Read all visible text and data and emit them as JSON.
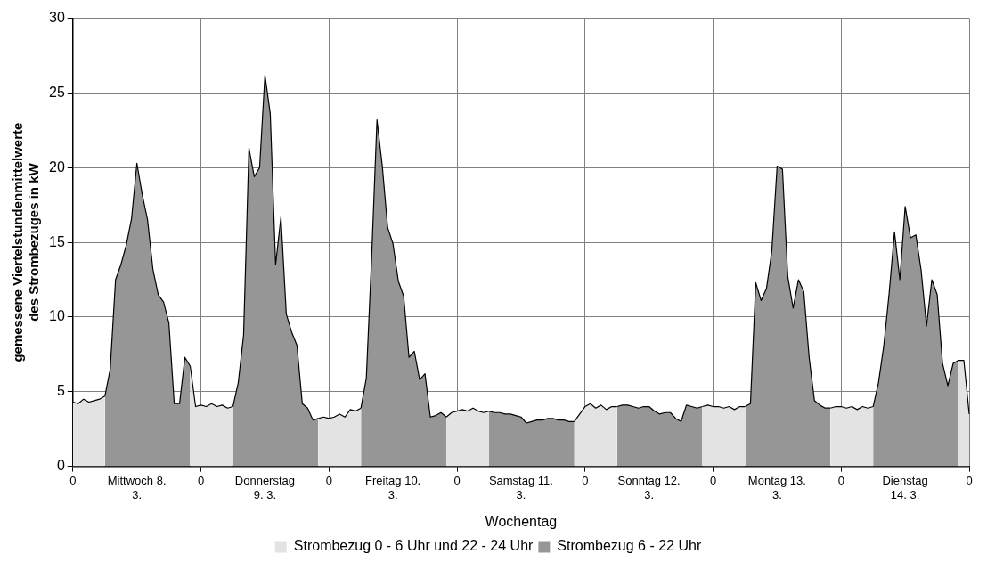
{
  "chart_data": {
    "type": "area",
    "xlabel": "Wochentag",
    "ylabel": "gemessene Viertelstundenmittelwerte des Strombezuges in kW",
    "categories": [
      "0",
      null,
      null,
      null,
      null,
      null,
      null,
      null,
      null,
      null,
      null,
      null,
      "Mittwoch 8. 3.",
      null,
      null,
      null,
      null,
      null,
      null,
      null,
      null,
      null,
      null,
      null,
      "0",
      null,
      null,
      null,
      null,
      null,
      null,
      null,
      null,
      null,
      null,
      null,
      "Donnerstag 9. 3.",
      null,
      null,
      null,
      null,
      null,
      null,
      null,
      null,
      null,
      null,
      null,
      "0",
      null,
      null,
      null,
      null,
      null,
      null,
      null,
      null,
      null,
      null,
      null,
      "Freitag 10. 3.",
      null,
      null,
      null,
      null,
      null,
      null,
      null,
      null,
      null,
      null,
      null,
      "0",
      null,
      null,
      null,
      null,
      null,
      null,
      null,
      null,
      null,
      null,
      null,
      "Samstag 11. 3.",
      null,
      null,
      null,
      null,
      null,
      null,
      null,
      null,
      null,
      null,
      null,
      "0",
      null,
      null,
      null,
      null,
      null,
      null,
      null,
      null,
      null,
      null,
      null,
      "Sonntag 12. 3.",
      null,
      null,
      null,
      null,
      null,
      null,
      null,
      null,
      null,
      null,
      null,
      "0",
      null,
      null,
      null,
      null,
      null,
      null,
      null,
      null,
      null,
      null,
      null,
      "Montag 13. 3.",
      null,
      null,
      null,
      null,
      null,
      null,
      null,
      null,
      null,
      null,
      null,
      "0",
      null,
      null,
      null,
      null,
      null,
      null,
      null,
      null,
      null,
      null,
      null,
      "Dienstag 14. 3.",
      null,
      null,
      null,
      null,
      null,
      null,
      null,
      null,
      null,
      null,
      null,
      "0"
    ],
    "ylim": [
      0,
      30
    ],
    "yticks": [
      0,
      5,
      10,
      15,
      20,
      25,
      30
    ],
    "grid": true,
    "legend": "bottom",
    "marker": "none",
    "series": [
      {
        "name": "Strombezug 0 - 6 Uhr und 22 - 24 Uhr",
        "color": "#e3e3e3",
        "values": [
          4.3,
          4.2,
          4.5,
          4.3,
          4.4,
          4.5,
          4.7,
          null,
          null,
          null,
          null,
          null,
          null,
          null,
          null,
          null,
          null,
          null,
          null,
          null,
          null,
          null,
          6.7,
          4.0,
          4.1,
          4.0,
          4.2,
          4.0,
          4.1,
          3.9,
          4.0,
          null,
          null,
          null,
          null,
          null,
          null,
          null,
          null,
          null,
          null,
          null,
          null,
          null,
          null,
          null,
          3.2,
          3.3,
          3.2,
          3.3,
          3.5,
          3.3,
          3.8,
          3.7,
          3.9,
          null,
          null,
          null,
          null,
          null,
          null,
          null,
          null,
          null,
          null,
          null,
          null,
          null,
          null,
          null,
          3.3,
          3.6,
          3.7,
          3.8,
          3.7,
          3.9,
          3.7,
          3.6,
          3.7,
          null,
          null,
          null,
          null,
          null,
          null,
          null,
          null,
          null,
          null,
          null,
          null,
          null,
          null,
          null,
          3.0,
          3.5,
          4.0,
          4.2,
          3.9,
          4.1,
          3.8,
          4.0,
          4.0,
          null,
          null,
          null,
          null,
          null,
          null,
          null,
          null,
          null,
          null,
          null,
          null,
          null,
          null,
          null,
          4.0,
          4.1,
          4.0,
          4.0,
          3.9,
          4.0,
          3.8,
          4.0,
          4.0,
          null,
          null,
          null,
          null,
          null,
          null,
          null,
          null,
          null,
          null,
          null,
          null,
          null,
          null,
          null,
          3.9,
          4.0,
          4.0,
          3.9,
          4.0,
          3.8,
          4.0,
          3.9,
          4.0,
          null,
          null,
          null,
          null,
          null,
          null,
          null,
          null,
          null,
          null,
          null,
          null,
          null,
          null,
          null,
          7.1,
          7.1,
          3.5
        ]
      },
      {
        "name": "Strombezug 6 - 22 Uhr",
        "color": "#969696",
        "values": [
          null,
          null,
          null,
          null,
          null,
          null,
          4.7,
          6.5,
          12.5,
          13.5,
          14.8,
          16.6,
          20.3,
          18.2,
          16.5,
          13.2,
          11.5,
          11.0,
          9.6,
          4.2,
          4.2,
          7.3,
          6.7,
          null,
          null,
          null,
          null,
          null,
          null,
          null,
          4.0,
          5.6,
          8.8,
          21.3,
          19.4,
          20.0,
          26.2,
          23.6,
          13.5,
          16.7,
          10.2,
          9.0,
          8.1,
          4.2,
          3.9,
          3.1,
          3.2,
          null,
          null,
          null,
          null,
          null,
          null,
          null,
          3.9,
          5.9,
          14.0,
          23.2,
          20.1,
          16.0,
          14.9,
          12.4,
          11.4,
          7.3,
          7.7,
          5.8,
          6.2,
          3.3,
          3.4,
          3.6,
          3.3,
          null,
          null,
          null,
          null,
          null,
          null,
          null,
          3.7,
          3.6,
          3.6,
          3.5,
          3.5,
          3.4,
          3.3,
          2.9,
          3.0,
          3.1,
          3.1,
          3.2,
          3.2,
          3.1,
          3.1,
          3.0,
          3.0,
          null,
          null,
          null,
          null,
          null,
          null,
          null,
          4.0,
          4.1,
          4.1,
          4.0,
          3.9,
          4.0,
          4.0,
          3.7,
          3.5,
          3.6,
          3.6,
          3.2,
          3.0,
          4.1,
          4.0,
          3.9,
          4.0,
          null,
          null,
          null,
          null,
          null,
          null,
          null,
          4.0,
          4.2,
          12.3,
          11.1,
          11.9,
          14.4,
          20.1,
          19.9,
          12.7,
          10.6,
          12.5,
          11.7,
          7.3,
          4.4,
          4.1,
          3.9,
          3.9,
          null,
          null,
          null,
          null,
          null,
          null,
          null,
          4.0,
          5.6,
          8.1,
          11.6,
          15.7,
          12.5,
          17.4,
          15.3,
          15.5,
          13.1,
          9.4,
          12.5,
          11.5,
          6.9,
          5.4,
          6.9,
          7.1,
          null,
          null
        ]
      }
    ]
  }
}
